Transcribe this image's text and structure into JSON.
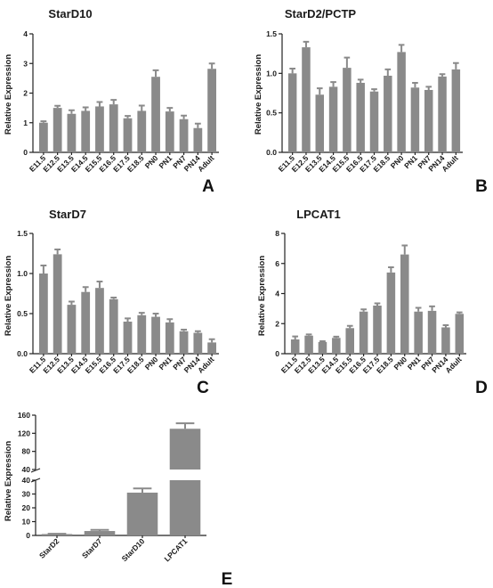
{
  "chart_data": [
    {
      "type": "bar",
      "panel": "A",
      "title": "StarD10",
      "ylabel": "Relative Expression",
      "categories": [
        "E11.5",
        "E12.5",
        "E13.5",
        "E14.5",
        "E15.5",
        "E16.5",
        "E17.5",
        "E18.5",
        "PN0",
        "PN1",
        "PN7",
        "PN14",
        "Adult"
      ],
      "values": [
        1.0,
        1.5,
        1.3,
        1.4,
        1.55,
        1.62,
        1.15,
        1.4,
        2.55,
        1.38,
        1.12,
        0.82,
        2.82
      ],
      "errors": [
        0.05,
        0.07,
        0.12,
        0.12,
        0.15,
        0.15,
        0.08,
        0.18,
        0.22,
        0.12,
        0.12,
        0.15,
        0.18
      ],
      "ylim": [
        0,
        4
      ],
      "yticks": [
        0,
        1,
        2,
        3,
        4
      ],
      "ytick_labels": [
        "0",
        "1",
        "2",
        "3",
        "4"
      ]
    },
    {
      "type": "bar",
      "panel": "B",
      "title": "StarD2/PCTP",
      "ylabel": "Relative Expression",
      "categories": [
        "E11.5",
        "E12.5",
        "E13.5",
        "E14.5",
        "E15.5",
        "E16.5",
        "E17.5",
        "E18.5",
        "PN0",
        "PN1",
        "PN7",
        "PN14",
        "Adult"
      ],
      "values": [
        1.0,
        1.33,
        0.73,
        0.83,
        1.07,
        0.88,
        0.77,
        0.97,
        1.27,
        0.82,
        0.79,
        0.96,
        1.05
      ],
      "errors": [
        0.06,
        0.07,
        0.08,
        0.06,
        0.13,
        0.04,
        0.03,
        0.08,
        0.09,
        0.06,
        0.04,
        0.03,
        0.08
      ],
      "ylim": [
        0,
        1.5
      ],
      "yticks": [
        0,
        0.5,
        1.0,
        1.5
      ],
      "ytick_labels": [
        "0.0",
        "0.5",
        "1.0",
        "1.5"
      ]
    },
    {
      "type": "bar",
      "panel": "C",
      "title": "StarD7",
      "ylabel": "Relative Expression",
      "categories": [
        "E11.5",
        "E12.5",
        "E13.5",
        "E14.5",
        "E15.5",
        "E16.5",
        "E17.5",
        "E18.5",
        "PN0",
        "PN1",
        "PN7",
        "PN14",
        "Adult"
      ],
      "values": [
        1.0,
        1.24,
        0.61,
        0.77,
        0.82,
        0.68,
        0.4,
        0.48,
        0.46,
        0.39,
        0.28,
        0.26,
        0.14
      ],
      "errors": [
        0.1,
        0.06,
        0.04,
        0.06,
        0.08,
        0.02,
        0.04,
        0.03,
        0.04,
        0.04,
        0.02,
        0.02,
        0.04
      ],
      "ylim": [
        0,
        1.5
      ],
      "yticks": [
        0,
        0.5,
        1.0,
        1.5
      ],
      "ytick_labels": [
        "0.0",
        "0.5",
        "1.0",
        "1.5"
      ]
    },
    {
      "type": "bar",
      "panel": "D",
      "title": "LPCAT1",
      "ylabel": "Relative Expression",
      "categories": [
        "E11.5",
        "E12.5",
        "E13.5",
        "E14.5",
        "E15.5",
        "E16.5",
        "E17.5",
        "E18.5",
        "PN0",
        "PN1",
        "PN7",
        "PN14",
        "Adult"
      ],
      "values": [
        0.95,
        1.2,
        0.78,
        1.05,
        1.7,
        2.8,
        3.2,
        5.4,
        6.6,
        2.8,
        2.85,
        1.75,
        2.65
      ],
      "errors": [
        0.2,
        0.08,
        0.05,
        0.08,
        0.15,
        0.15,
        0.15,
        0.35,
        0.6,
        0.25,
        0.3,
        0.15,
        0.1
      ],
      "ylim": [
        0,
        8
      ],
      "yticks": [
        0,
        2,
        4,
        6,
        8
      ],
      "ytick_labels": [
        "0",
        "2",
        "4",
        "6",
        "8"
      ]
    },
    {
      "type": "bar",
      "panel": "E",
      "title": "",
      "ylabel": "Relative Expression",
      "broken_axis": true,
      "categories": [
        "StarD2",
        "StarD7",
        "StarD10",
        "LPCAT1"
      ],
      "values": [
        1.0,
        3.2,
        31,
        130
      ],
      "errors": [
        0.2,
        0.8,
        3.0,
        12
      ],
      "ylim_lower": [
        0,
        40
      ],
      "ylim_upper": [
        40,
        160
      ],
      "yticks_lower": [
        0,
        10,
        20,
        30,
        40
      ],
      "yticks_upper": [
        40,
        80,
        120,
        160
      ]
    }
  ]
}
